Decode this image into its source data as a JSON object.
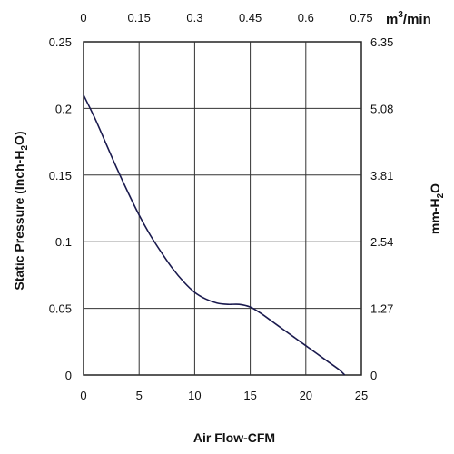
{
  "chart_data": {
    "type": "line",
    "xlabel": "Air Flow-CFM",
    "ylabel": "Static Pressure (Inch-H",
    "ylabel_sub": "2",
    "ylabel_end": "O)",
    "y2label": "mm-H",
    "y2label_sub": "2",
    "y2label_end": "O",
    "x2label": "m",
    "x2label_sup": "3",
    "x2label_end": "/min",
    "xlim": [
      0,
      25
    ],
    "ylim": [
      0,
      0.25
    ],
    "x_ticks": [
      "0",
      "5",
      "10",
      "15",
      "20",
      "25"
    ],
    "y_ticks": [
      "0",
      "0.05",
      "0.1",
      "0.15",
      "0.2",
      "0.25"
    ],
    "x2_ticks": [
      "0",
      "0.15",
      "0.3",
      "0.45",
      "0.6",
      "0.75"
    ],
    "y2_ticks": [
      "0",
      "1.27",
      "2.54",
      "3.81",
      "5.08",
      "6.35"
    ],
    "grid": true,
    "line_color": "#1a1a4e",
    "series": [
      {
        "x": [
          0,
          1,
          2,
          3,
          4,
          5,
          6,
          7,
          8,
          9,
          10,
          11,
          12,
          13,
          14,
          15,
          16,
          17,
          18,
          19,
          20,
          21,
          22,
          23,
          23.5
        ],
        "y": [
          0.21,
          0.193,
          0.174,
          0.155,
          0.137,
          0.12,
          0.105,
          0.092,
          0.08,
          0.07,
          0.062,
          0.057,
          0.054,
          0.053,
          0.053,
          0.051,
          0.046,
          0.04,
          0.034,
          0.028,
          0.022,
          0.016,
          0.01,
          0.004,
          0.0
        ]
      }
    ]
  }
}
